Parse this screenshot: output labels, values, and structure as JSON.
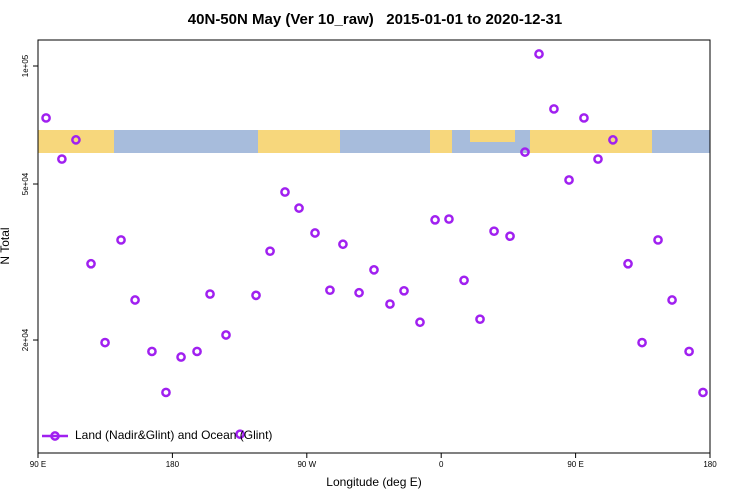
{
  "chart_data": {
    "type": "scatter",
    "title": "40N-50N May (Ver 10_raw)   2015-01-01 to 2020-12-31",
    "x_label": "Longitude (deg E)",
    "y_label": "N Total",
    "log_y": true,
    "xlim": [
      90,
      540
    ],
    "ylim": [
      10300,
      116500
    ],
    "xticks": [
      {
        "value": 90,
        "label": "90 E"
      },
      180,
      {
        "value": 270,
        "label": "90 W"
      },
      {
        "value": 360,
        "label": "0"
      },
      {
        "value": 450,
        "label": "90 E"
      },
      {
        "value": 540,
        "label": "180"
      }
    ],
    "yticks": [
      {
        "value": 20000,
        "label": "2e+04"
      },
      {
        "value": 50000,
        "label": "5e+04"
      },
      {
        "value": 100000,
        "label": "1e+05"
      }
    ],
    "legend_position": "bottomleft",
    "series": [
      {
        "name": "Land (Nadir&Glint) and Ocean (Glint)",
        "color": "#a020f0",
        "x": [
          95.4,
          106,
          115.4,
          125.5,
          134.9,
          145.6,
          155,
          166.3,
          175.7,
          185.8,
          196.5,
          205.2,
          215.9,
          225.3,
          236,
          245.4,
          255.4,
          264.8,
          275.5,
          285.5,
          294.2,
          305,
          315,
          325.7,
          335.1,
          345.8,
          355.9,
          365.2,
          375.3,
          386,
          395.4,
          406.1,
          416.1,
          425.5,
          435.5,
          445.6,
          455.6,
          465,
          475,
          485.1,
          494.5,
          505.2,
          514.6,
          526,
          535.3
        ],
        "values": [
          73700,
          57900,
          64800,
          31300,
          19700,
          36000,
          25300,
          18700,
          14700,
          18100,
          18700,
          26200,
          20600,
          11500,
          26000,
          33700,
          47700,
          43400,
          37500,
          26800,
          35100,
          26400,
          30200,
          24700,
          26700,
          22200,
          40500,
          40700,
          28400,
          22600,
          37900,
          36800,
          60300,
          107300,
          77700,
          51200,
          73700,
          57900,
          64800,
          31300,
          19700,
          36000,
          25300,
          18700,
          14700
        ]
      }
    ]
  }
}
